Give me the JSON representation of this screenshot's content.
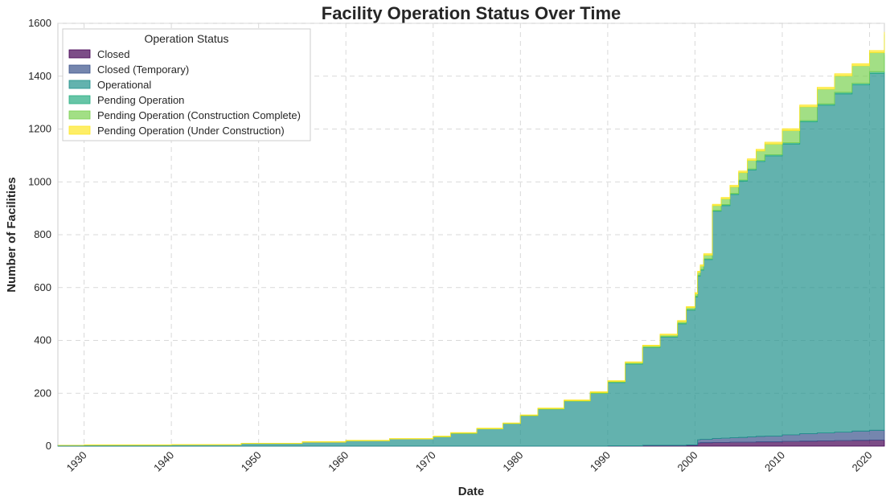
{
  "chart_data": {
    "type": "area",
    "stacked": true,
    "title": "Facility Operation Status Over Time",
    "xlabel": "Date",
    "ylabel": "Number of Facilities",
    "xlim": [
      1927,
      2021.7
    ],
    "ylim": [
      0,
      1600
    ],
    "x_ticks": [
      1930,
      1940,
      1950,
      1960,
      1970,
      1980,
      1990,
      2000,
      2010,
      2020
    ],
    "y_ticks": [
      0,
      200,
      400,
      600,
      800,
      1000,
      1200,
      1400,
      1600
    ],
    "grid": true,
    "legend_title": "Operation Status",
    "legend_position": "upper-left",
    "x": [
      1927,
      1930,
      1940,
      1947,
      1948,
      1955,
      1960,
      1965,
      1970,
      1972,
      1975,
      1978,
      1980,
      1982,
      1985,
      1988,
      1990,
      1992,
      1994,
      1996,
      1998,
      1999,
      2000,
      2000.3,
      2000.6,
      2001,
      2002,
      2003,
      2004,
      2005,
      2006,
      2007,
      2008,
      2010,
      2012,
      2014,
      2016,
      2018,
      2020,
      2021.7
    ],
    "series": [
      {
        "name": "Closed",
        "color": "#440154",
        "values": [
          0,
          0,
          0,
          0,
          0,
          0,
          0,
          0,
          0,
          0,
          0,
          0,
          0,
          0,
          0,
          0,
          1,
          1,
          2,
          2,
          2,
          3,
          3,
          12,
          13,
          13,
          14,
          14,
          15,
          15,
          15,
          16,
          16,
          18,
          19,
          20,
          21,
          22,
          23,
          24
        ]
      },
      {
        "name": "Closed (Temporary)",
        "color": "#3b528b",
        "values": [
          0,
          0,
          0,
          0,
          0,
          0,
          0,
          0,
          0,
          0,
          0,
          0,
          0,
          0,
          0,
          0,
          0,
          0,
          1,
          1,
          1,
          2,
          2,
          12,
          13,
          13,
          15,
          16,
          17,
          18,
          20,
          21,
          22,
          25,
          28,
          30,
          32,
          35,
          37,
          38
        ]
      },
      {
        "name": "Operational",
        "color": "#21918c",
        "values": [
          3,
          4,
          5,
          5,
          10,
          15,
          20,
          27,
          35,
          48,
          65,
          85,
          115,
          140,
          170,
          200,
          240,
          310,
          370,
          410,
          460,
          510,
          560,
          620,
          640,
          680,
          860,
          880,
          920,
          970,
          1010,
          1040,
          1060,
          1100,
          1180,
          1240,
          1280,
          1310,
          1350,
          1410
        ]
      },
      {
        "name": "Pending Operation",
        "color": "#27ad81",
        "values": [
          0,
          0,
          0,
          0,
          0,
          0,
          0,
          0,
          0,
          0,
          0,
          0,
          0,
          0,
          0,
          0,
          1,
          1,
          1,
          2,
          2,
          2,
          3,
          3,
          3,
          3,
          3,
          4,
          4,
          4,
          4,
          4,
          5,
          5,
          5,
          5,
          6,
          6,
          7,
          8
        ]
      },
      {
        "name": "Pending Operation (Construction Complete)",
        "color": "#7ad151",
        "values": [
          0,
          0,
          0,
          0,
          0,
          0,
          0,
          0,
          1,
          1,
          1,
          1,
          1,
          2,
          2,
          3,
          3,
          4,
          5,
          5,
          6,
          7,
          8,
          10,
          12,
          14,
          18,
          22,
          25,
          28,
          32,
          36,
          40,
          46,
          52,
          56,
          62,
          66,
          72,
          78
        ]
      },
      {
        "name": "Pending Operation (Under Construction)",
        "color": "#fde725",
        "values": [
          0,
          1,
          1,
          1,
          1,
          2,
          2,
          2,
          2,
          2,
          2,
          2,
          2,
          2,
          3,
          3,
          3,
          3,
          3,
          4,
          4,
          4,
          5,
          5,
          5,
          5,
          5,
          5,
          6,
          6,
          6,
          6,
          7,
          7,
          7,
          7,
          8,
          8,
          8,
          9
        ]
      }
    ]
  }
}
